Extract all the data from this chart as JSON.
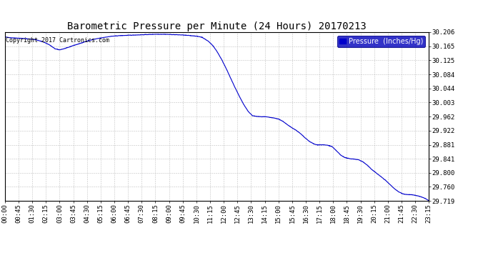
{
  "title": "Barometric Pressure per Minute (24 Hours) 20170213",
  "copyright_text": "Copyright 2017 Cartronics.com",
  "legend_label": "Pressure  (Inches/Hg)",
  "line_color": "#0000CC",
  "background_color": "#ffffff",
  "plot_bg_color": "#ffffff",
  "grid_color": "#bbbbbb",
  "x_tick_labels": [
    "00:00",
    "00:45",
    "01:30",
    "02:15",
    "03:00",
    "03:45",
    "04:30",
    "05:15",
    "06:00",
    "06:45",
    "07:30",
    "08:15",
    "09:00",
    "09:45",
    "10:30",
    "11:15",
    "12:00",
    "12:45",
    "13:30",
    "14:15",
    "15:00",
    "15:45",
    "16:30",
    "17:15",
    "18:00",
    "18:45",
    "19:30",
    "20:15",
    "21:00",
    "21:45",
    "22:30",
    "23:15"
  ],
  "y_tick_labels": [
    "29.719",
    "29.760",
    "29.800",
    "29.841",
    "29.881",
    "29.922",
    "29.962",
    "30.003",
    "30.044",
    "30.084",
    "30.125",
    "30.165",
    "30.206"
  ],
  "y_values": [
    29.719,
    29.76,
    29.8,
    29.841,
    29.881,
    29.922,
    29.962,
    30.003,
    30.044,
    30.084,
    30.125,
    30.165,
    30.206
  ],
  "ylim": [
    29.719,
    30.206
  ],
  "xlim": [
    0,
    1439
  ],
  "title_fontsize": 10,
  "tick_fontsize": 6.5,
  "copyright_fontsize": 6,
  "legend_fontsize": 7
}
